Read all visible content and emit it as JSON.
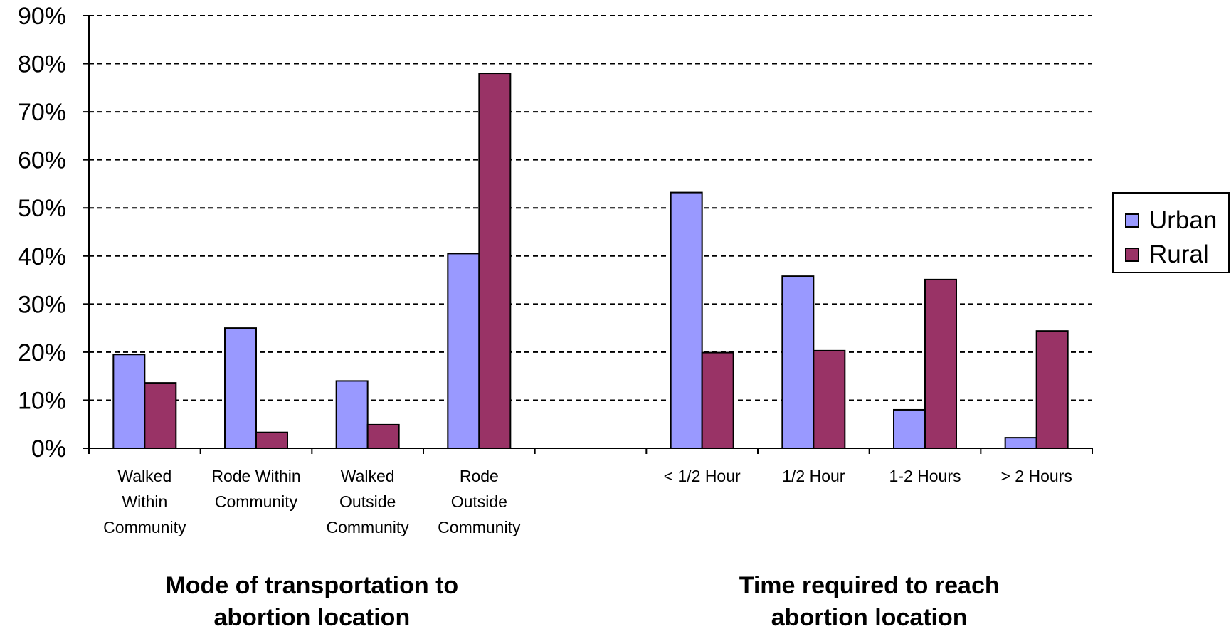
{
  "chart_data": {
    "type": "bar",
    "categories": [
      [
        "Walked",
        "Within",
        "Community"
      ],
      [
        "Rode Within",
        "Community"
      ],
      [
        "Walked",
        "Outside",
        "Community"
      ],
      [
        "Rode",
        "Outside",
        "Community"
      ],
      [],
      [
        "< 1/2 Hour"
      ],
      [
        "1/2 Hour"
      ],
      [
        "1-2 Hours"
      ],
      [
        "> 2 Hours"
      ]
    ],
    "series": [
      {
        "name": "Urban",
        "color": "#9999ff",
        "values": [
          19.5,
          25,
          14,
          40.5,
          null,
          53.2,
          35.8,
          8,
          2.2
        ]
      },
      {
        "name": "Rural",
        "color": "#993366",
        "values": [
          13.6,
          3.3,
          4.9,
          78,
          null,
          19.9,
          20.3,
          35.1,
          24.4
        ]
      }
    ],
    "ylim": [
      0,
      90
    ],
    "yticks": [
      0,
      10,
      20,
      30,
      40,
      50,
      60,
      70,
      80,
      90
    ],
    "ytick_labels": [
      "0%",
      "10%",
      "20%",
      "30%",
      "40%",
      "50%",
      "60%",
      "70%",
      "80%",
      "90%"
    ],
    "grid": "horizontal dashed",
    "legend_position": "right",
    "group_titles": [
      {
        "lines": [
          "Mode of transportation to",
          "abortion location"
        ],
        "categories": [
          0,
          3
        ]
      },
      {
        "lines": [
          "Time required to reach",
          "abortion location"
        ],
        "categories": [
          5,
          8
        ]
      }
    ],
    "title": "",
    "xlabel": "",
    "ylabel": ""
  }
}
